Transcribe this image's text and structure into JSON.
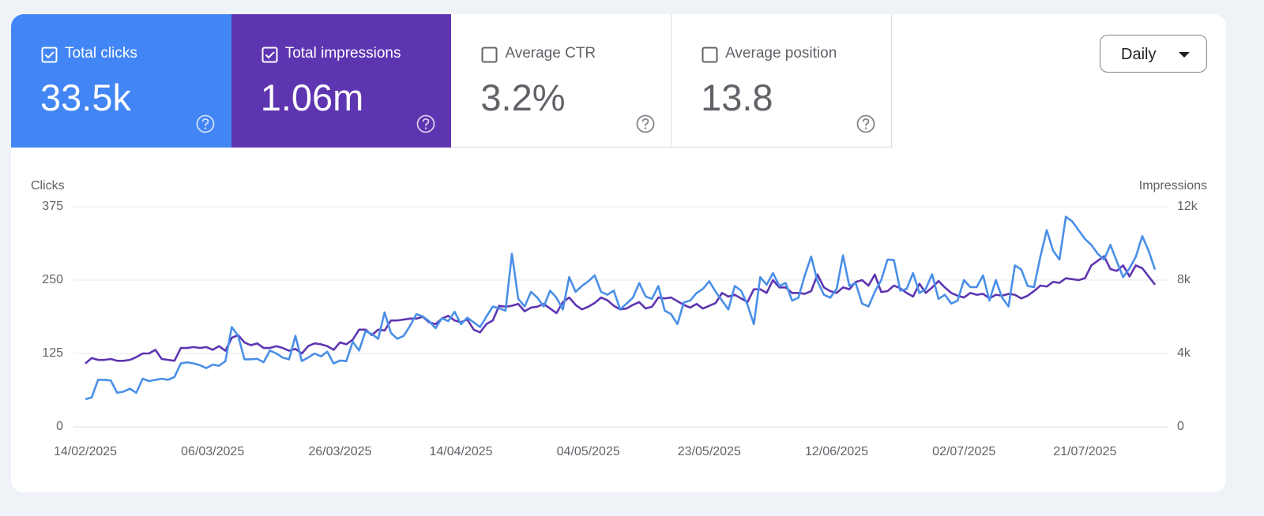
{
  "cards": [
    {
      "label": "Total clicks",
      "value": "33.5k",
      "checked": true,
      "color": "#4285f4"
    },
    {
      "label": "Total impressions",
      "value": "1.06m",
      "checked": true,
      "color": "#5e35b1"
    },
    {
      "label": "Average CTR",
      "value": "3.2%",
      "checked": false,
      "color": "#ffffff"
    },
    {
      "label": "Average position",
      "value": "13.8",
      "checked": false,
      "color": "#ffffff"
    }
  ],
  "period_selector": "Daily",
  "chart_data": {
    "type": "line",
    "y_label": "Clicks",
    "y2_label": "Impressions",
    "categories": [
      "14/02/2025",
      null,
      null,
      null,
      null,
      null,
      null,
      null,
      null,
      null,
      null,
      null,
      null,
      null,
      null,
      null,
      null,
      null,
      null,
      null,
      "06/03/2025",
      null,
      null,
      null,
      null,
      null,
      null,
      null,
      null,
      null,
      null,
      null,
      null,
      null,
      null,
      null,
      null,
      null,
      null,
      null,
      "26/03/2025",
      null,
      null,
      null,
      null,
      null,
      null,
      null,
      null,
      null,
      null,
      null,
      null,
      null,
      null,
      null,
      null,
      null,
      null,
      "14/04/2025",
      null,
      null,
      null,
      null,
      null,
      null,
      null,
      null,
      null,
      null,
      null,
      null,
      null,
      null,
      null,
      null,
      null,
      null,
      null,
      "04/05/2025",
      null,
      null,
      null,
      null,
      null,
      null,
      null,
      null,
      null,
      null,
      null,
      null,
      null,
      null,
      null,
      null,
      null,
      null,
      "23/05/2025",
      null,
      null,
      null,
      null,
      null,
      null,
      null,
      null,
      null,
      null,
      null,
      null,
      null,
      null,
      null,
      null,
      null,
      null,
      null,
      "12/06/2025",
      null,
      null,
      null,
      null,
      null,
      null,
      null,
      null,
      null,
      null,
      null,
      null,
      null,
      null,
      null,
      null,
      null,
      null,
      null,
      "02/07/2025",
      null,
      null,
      null,
      null,
      null,
      null,
      null,
      null,
      null,
      null,
      null,
      null,
      null,
      null,
      null,
      null,
      null,
      null,
      "21/07/2025",
      null,
      null,
      null,
      null,
      null,
      null,
      null,
      null,
      null,
      null,
      null
    ],
    "series": [
      {
        "name": "Clicks",
        "color": "#4a8fe7",
        "values": [
          47,
          50,
          80,
          80,
          79,
          58,
          60,
          65,
          58,
          82,
          78,
          80,
          82,
          80,
          85,
          108,
          110,
          108,
          105,
          100,
          106,
          104,
          112,
          170,
          155,
          115,
          115,
          116,
          110,
          130,
          125,
          118,
          115,
          155,
          112,
          118,
          125,
          120,
          128,
          108,
          113,
          112,
          145,
          130,
          163,
          158,
          150,
          195,
          160,
          150,
          155,
          172,
          192,
          188,
          180,
          168,
          185,
          180,
          196,
          175,
          186,
          178,
          170,
          188,
          205,
          202,
          198,
          295,
          218,
          205,
          230,
          220,
          205,
          232,
          220,
          200,
          255,
          230,
          240,
          248,
          258,
          230,
          225,
          232,
          200,
          210,
          220,
          245,
          222,
          218,
          240,
          198,
          192,
          175,
          212,
          215,
          228,
          235,
          248,
          230,
          215,
          200,
          240,
          232,
          208,
          175,
          255,
          242,
          262,
          240,
          245,
          215,
          220,
          258,
          290,
          248,
          225,
          220,
          235,
          292,
          240,
          245,
          210,
          205,
          230,
          250,
          285,
          284,
          232,
          235,
          262,
          228,
          235,
          260,
          218,
          225,
          210,
          215,
          250,
          238,
          238,
          258,
          215,
          250,
          220,
          205,
          275,
          268,
          240,
          238,
          290,
          335,
          300,
          285,
          358,
          350,
          335,
          320,
          310,
          295,
          285,
          310,
          282,
          255,
          270,
          290,
          325,
          300,
          268
        ]
      },
      {
        "name": "Impressions",
        "color": "#5e35b1",
        "axis": "y2",
        "values": [
          3450,
          3750,
          3650,
          3650,
          3700,
          3600,
          3600,
          3650,
          3800,
          4000,
          4000,
          4200,
          3700,
          3650,
          3600,
          4300,
          4300,
          4350,
          4300,
          4350,
          4200,
          4400,
          4150,
          4850,
          5000,
          4600,
          4450,
          4550,
          4300,
          4300,
          4400,
          4300,
          4150,
          4250,
          4000,
          4400,
          4550,
          4500,
          4400,
          4200,
          4600,
          4500,
          4750,
          5300,
          5300,
          5000,
          5300,
          5250,
          5800,
          5800,
          5850,
          5900,
          5900,
          6000,
          5700,
          5600,
          5900,
          6050,
          5800,
          5700,
          5850,
          5300,
          5150,
          5600,
          5800,
          6600,
          6550,
          6600,
          6700,
          6300,
          6500,
          6550,
          6700,
          6450,
          6200,
          6800,
          7050,
          6650,
          6400,
          6550,
          6750,
          7050,
          6900,
          6600,
          6400,
          6450,
          6650,
          6800,
          6450,
          6550,
          7050,
          7000,
          7050,
          6850,
          6650,
          6500,
          6700,
          6450,
          6600,
          6750,
          7300,
          7100,
          7200,
          7000,
          6800,
          7500,
          7500,
          7300,
          8000,
          7600,
          7600,
          7300,
          7300,
          7250,
          7400,
          8300,
          7600,
          7400,
          7300,
          7600,
          7500,
          7900,
          8000,
          7700,
          8300,
          7350,
          7400,
          7700,
          7550,
          7300,
          7100,
          7800,
          7300,
          7600,
          7950,
          7600,
          7300,
          7150,
          7050,
          7300,
          7200,
          7250,
          7000,
          7200,
          7150,
          7250,
          7200,
          7000,
          7150,
          7400,
          7700,
          7650,
          7900,
          7850,
          8100,
          8050,
          8000,
          8100,
          8800,
          9050,
          9300,
          8600,
          8500,
          8800,
          8200,
          8800,
          8650,
          8200,
          7750
        ]
      }
    ],
    "ylim": [
      0,
      375
    ],
    "yticks": [
      0,
      125,
      250,
      375
    ],
    "y2lim": [
      0,
      12000
    ],
    "y2ticks": [
      0,
      {
        "value": 4000,
        "label": "4k"
      },
      {
        "value": 8000,
        "label": "8k"
      },
      {
        "value": 12000,
        "label": "12k"
      }
    ],
    "grid": true
  }
}
